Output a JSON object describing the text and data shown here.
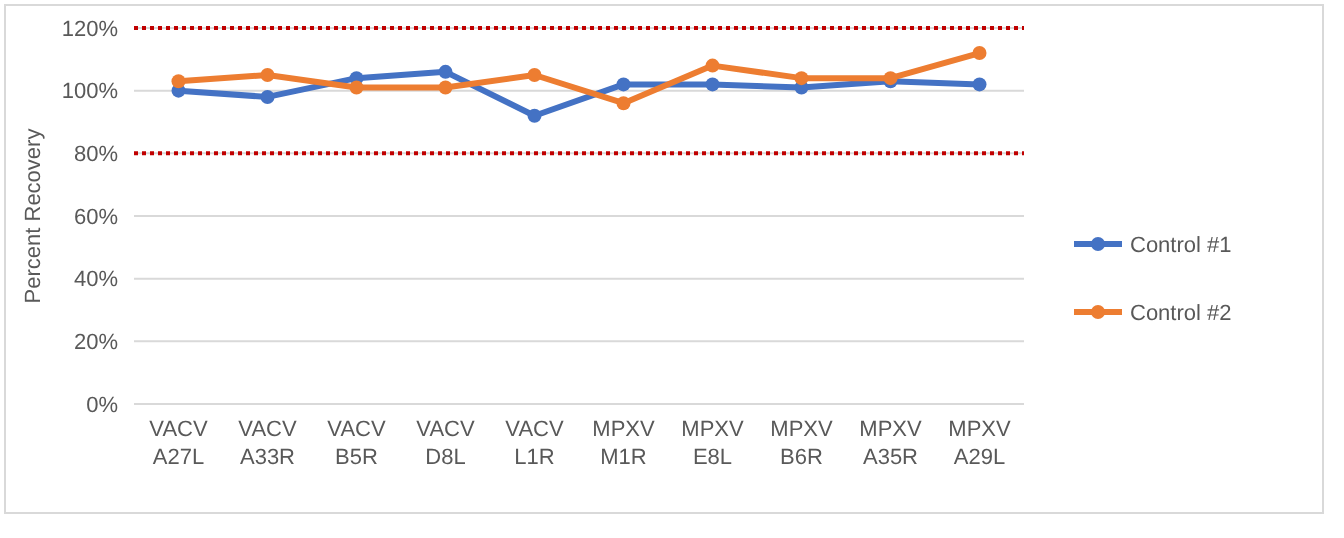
{
  "chart_data": {
    "type": "line",
    "ylabel": "Percent Recovery",
    "categories": [
      "VACV\nA27L",
      "VACV\nA33R",
      "VACV\nB5R",
      "VACV\nD8L",
      "VACV\nL1R",
      "MPXV\nM1R",
      "MPXV\nE8L",
      "MPXV\nB6R",
      "MPXV\nA35R",
      "MPXV\nA29L"
    ],
    "series": [
      {
        "name": "Control #1",
        "color": "#4472c4",
        "values": [
          100,
          98,
          104,
          106,
          92,
          102,
          102,
          101,
          103,
          102
        ]
      },
      {
        "name": "Control #2",
        "color": "#ed7d31",
        "values": [
          103,
          105,
          101,
          101,
          105,
          96,
          108,
          104,
          104,
          112
        ]
      }
    ],
    "ylim": [
      0,
      120
    ],
    "yticks": [
      {
        "value": 0,
        "label": "0%"
      },
      {
        "value": 20,
        "label": "20%"
      },
      {
        "value": 40,
        "label": "40%"
      },
      {
        "value": 60,
        "label": "60%"
      },
      {
        "value": 80,
        "label": "80%"
      },
      {
        "value": 100,
        "label": "100%"
      },
      {
        "value": 120,
        "label": "120%"
      }
    ],
    "ref_lines": [
      {
        "axis": "y",
        "value": 80,
        "color": "#c00000",
        "line_style": "dotted"
      },
      {
        "axis": "y",
        "value": 120,
        "color": "#c00000",
        "line_style": "dotted"
      }
    ],
    "grid": "y",
    "legend": "right",
    "marker": "circle",
    "line_style": "solid"
  }
}
